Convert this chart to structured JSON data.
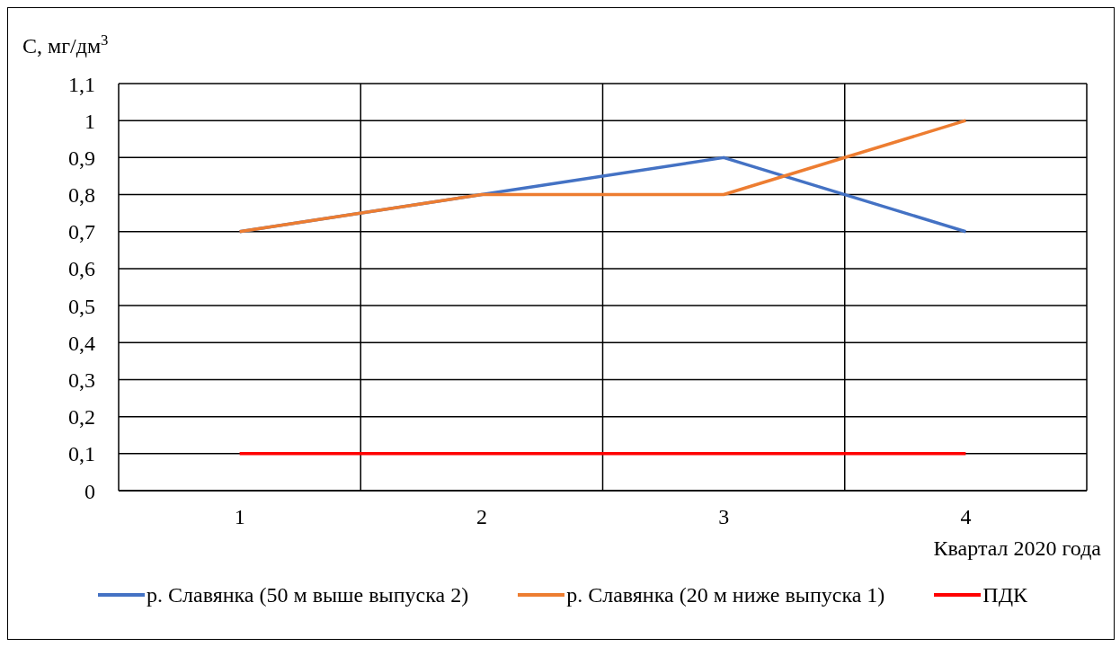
{
  "chart_data": {
    "type": "line",
    "ylabel": "C, мг/дм$^{3}$",
    "xlabel": "Квартал 2020 года",
    "categories": [
      "1",
      "2",
      "3",
      "4"
    ],
    "series": [
      {
        "name": "р. Славянка (50 м выше выпуска 2)",
        "color": "#4472c4",
        "values": [
          0.7,
          0.8,
          0.9,
          0.7
        ]
      },
      {
        "name": "р. Славянка (20 м ниже выпуска 1)",
        "color": "#ed7d31",
        "values": [
          0.7,
          0.8,
          0.8,
          1
        ]
      },
      {
        "name": "ПДК",
        "color": "#ff0000",
        "values": [
          0.1,
          0.1,
          0.1,
          0.1
        ]
      }
    ],
    "ylim": [
      0,
      1.1
    ],
    "yticks": [
      0,
      {
        "value": 0.1,
        "label": "0,1"
      },
      {
        "value": 0.2,
        "label": "0,2"
      },
      {
        "value": 0.3,
        "label": "0,3"
      },
      {
        "value": 0.4,
        "label": "0,4"
      },
      {
        "value": 0.5,
        "label": "0,5"
      },
      {
        "value": 0.6,
        "label": "0,6"
      },
      {
        "value": 0.7,
        "label": "0,7"
      },
      {
        "value": 0.8,
        "label": "0,8"
      },
      {
        "value": 0.9,
        "label": "0,9"
      },
      1,
      {
        "value": 1.1,
        "label": "1,1"
      }
    ],
    "grid": true,
    "legend": "bottom",
    "marker": "none",
    "line_style": "solid"
  }
}
